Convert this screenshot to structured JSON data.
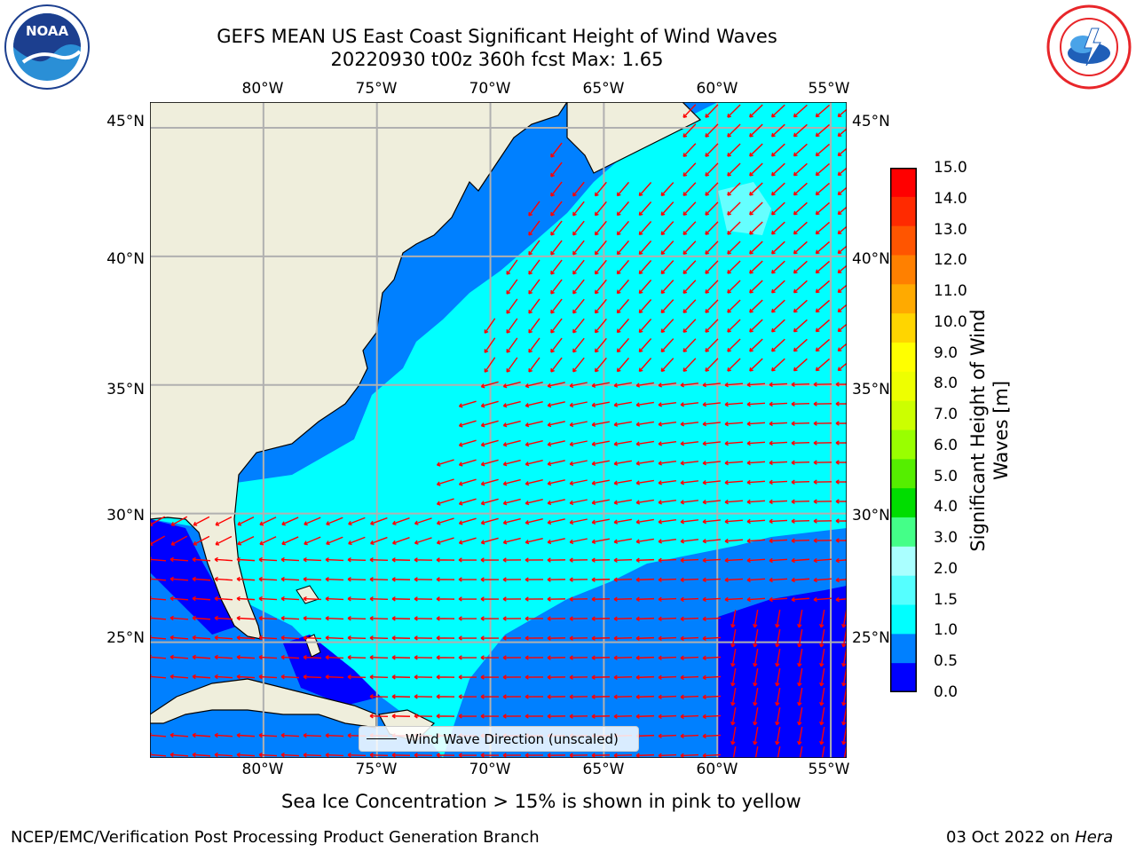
{
  "header": {
    "title_line1": "GEFS MEAN US East Coast Significant Height of Wind Waves",
    "title_line2": "20220930 t00z 360h fcst   Max: 1.65"
  },
  "logos": {
    "left": {
      "name": "noaa-logo",
      "text": "NOAA",
      "colors": {
        "dark": "#1c3f8f",
        "light": "#2a8fd6"
      }
    },
    "right": {
      "name": "nws-logo",
      "colors": {
        "red": "#e8262a",
        "blue": "#1f5fb8"
      }
    }
  },
  "map": {
    "lon_labels": [
      "80°W",
      "75°W",
      "70°W",
      "65°W",
      "60°W",
      "55°W"
    ],
    "lat_labels": [
      "45°N",
      "40°N",
      "35°N",
      "30°N",
      "25°N"
    ],
    "extent": {
      "lon": [
        -85,
        -54.3
      ],
      "lat": [
        20.5,
        46
      ]
    },
    "colors": {
      "land": "#efeedc",
      "grid": "#b0b0b0",
      "arrow": "#ff0000",
      "band_0_0.5": "#0000ff",
      "band_0.5_1.0": "#0080ff",
      "band_1.0_1.5": "#00ffff",
      "band_1.5_2.0": "#66ffff"
    }
  },
  "legend": {
    "label": "Wind Wave Direction (unscaled)"
  },
  "colorbar": {
    "label_line1": "Significant Height of Wind",
    "label_line2": "Waves [m]",
    "ticks": [
      "15.0",
      "14.0",
      "13.0",
      "12.0",
      "11.0",
      "10.0",
      "9.0",
      "8.0",
      "7.0",
      "6.0",
      "5.0",
      "4.0",
      "3.0",
      "2.0",
      "1.5",
      "1.0",
      "0.5",
      "0.0"
    ],
    "colors": [
      "#ff0000",
      "#ff2a00",
      "#ff5500",
      "#ff8000",
      "#ffaa00",
      "#ffd500",
      "#ffff00",
      "#eeff00",
      "#ccff00",
      "#99ff00",
      "#55ee00",
      "#00dd00",
      "#44ff88",
      "#aaffff",
      "#55ffff",
      "#00ffff",
      "#0080ff",
      "#0000ff"
    ]
  },
  "notes": {
    "sea_ice": "Sea Ice Concentration > 15% is shown in pink to yellow",
    "credit_left": "NCEP/EMC/Verification Post Processing Product Generation Branch",
    "credit_date": "03 Oct 2022 on ",
    "credit_machine": "Hera"
  }
}
